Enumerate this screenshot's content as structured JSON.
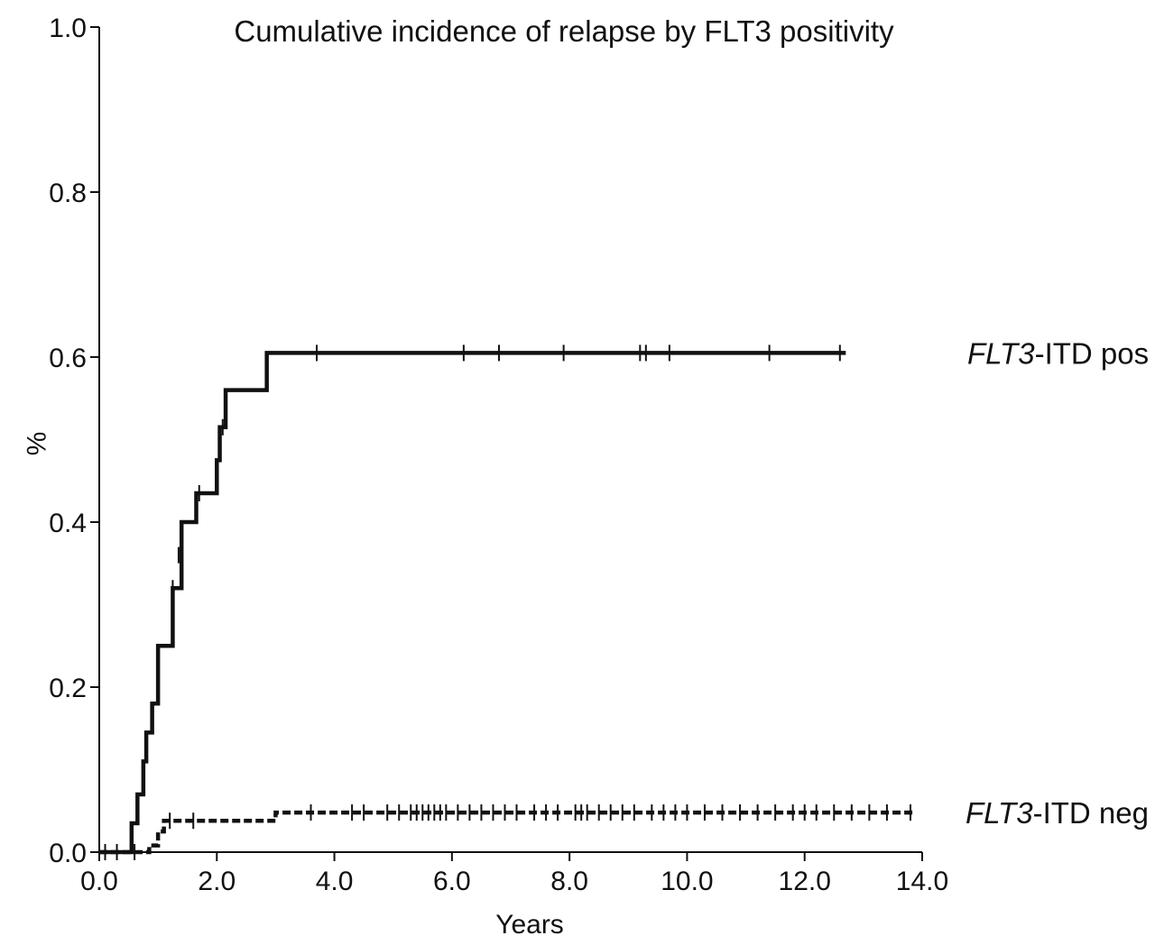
{
  "chart_data": {
    "type": "line",
    "title": "Cumulative incidence of relapse by FLT3 positivity",
    "xlabel": "Years",
    "ylabel": "%",
    "xlim": [
      0,
      14
    ],
    "ylim": [
      0,
      1
    ],
    "grid": false,
    "x_ticks": [
      0,
      2,
      4,
      6,
      8,
      10,
      12,
      14
    ],
    "x_tick_labels": [
      "0.0",
      "2.0",
      "4.0",
      "6.0",
      "8.0",
      "10.0",
      "12.0",
      "14.0"
    ],
    "y_ticks": [
      0,
      0.2,
      0.4,
      0.6,
      0.8,
      1
    ],
    "y_tick_labels": [
      "0.0",
      "0.2",
      "0.4",
      "0.6",
      "0.8",
      "1.0"
    ],
    "series": [
      {
        "name": "FLT3-ITD pos",
        "label_italic": "FLT3",
        "label_rest": "-ITD pos",
        "style": "solid",
        "color": "#111111",
        "steps": [
          [
            0,
            0
          ],
          [
            0.55,
            0.035
          ],
          [
            0.65,
            0.07
          ],
          [
            0.75,
            0.11
          ],
          [
            0.8,
            0.145
          ],
          [
            0.9,
            0.18
          ],
          [
            1.0,
            0.25
          ],
          [
            1.25,
            0.32
          ],
          [
            1.4,
            0.4
          ],
          [
            1.65,
            0.435
          ],
          [
            2.0,
            0.475
          ],
          [
            2.05,
            0.515
          ],
          [
            2.15,
            0.56
          ],
          [
            2.85,
            0.605
          ],
          [
            12.7,
            0.605
          ]
        ],
        "censored": [
          [
            1.25,
            0.32
          ],
          [
            1.35,
            0.36
          ],
          [
            1.7,
            0.435
          ],
          [
            2.1,
            0.515
          ],
          [
            3.7,
            0.605
          ],
          [
            6.2,
            0.605
          ],
          [
            6.8,
            0.605
          ],
          [
            7.9,
            0.605
          ],
          [
            9.2,
            0.605
          ],
          [
            9.3,
            0.605
          ],
          [
            9.7,
            0.605
          ],
          [
            11.4,
            0.605
          ],
          [
            12.6,
            0.605
          ]
        ]
      },
      {
        "name": "FLT3-ITD neg",
        "label_italic": "FLT3",
        "label_rest": "-ITD neg",
        "style": "dashed",
        "color": "#111111",
        "steps": [
          [
            0,
            0
          ],
          [
            0.85,
            0.008
          ],
          [
            1.0,
            0.025
          ],
          [
            1.1,
            0.038
          ],
          [
            3.0,
            0.048
          ],
          [
            13.85,
            0.048
          ]
        ],
        "censored": [
          [
            0.1,
            0.0
          ],
          [
            0.3,
            0.0
          ],
          [
            0.6,
            0.0
          ],
          [
            1.2,
            0.038
          ],
          [
            1.6,
            0.038
          ],
          [
            3.6,
            0.048
          ],
          [
            4.3,
            0.048
          ],
          [
            4.5,
            0.048
          ],
          [
            4.9,
            0.048
          ],
          [
            5.1,
            0.048
          ],
          [
            5.3,
            0.048
          ],
          [
            5.4,
            0.048
          ],
          [
            5.5,
            0.048
          ],
          [
            5.6,
            0.048
          ],
          [
            5.7,
            0.048
          ],
          [
            5.8,
            0.048
          ],
          [
            5.9,
            0.048
          ],
          [
            6.1,
            0.048
          ],
          [
            6.3,
            0.048
          ],
          [
            6.5,
            0.048
          ],
          [
            6.7,
            0.048
          ],
          [
            6.9,
            0.048
          ],
          [
            7.1,
            0.048
          ],
          [
            7.4,
            0.048
          ],
          [
            7.6,
            0.048
          ],
          [
            7.8,
            0.048
          ],
          [
            8.1,
            0.048
          ],
          [
            8.2,
            0.048
          ],
          [
            8.3,
            0.048
          ],
          [
            8.5,
            0.048
          ],
          [
            8.7,
            0.048
          ],
          [
            8.9,
            0.048
          ],
          [
            9.1,
            0.048
          ],
          [
            9.4,
            0.048
          ],
          [
            9.6,
            0.048
          ],
          [
            9.8,
            0.048
          ],
          [
            10.0,
            0.048
          ],
          [
            10.3,
            0.048
          ],
          [
            10.6,
            0.048
          ],
          [
            10.9,
            0.048
          ],
          [
            11.2,
            0.048
          ],
          [
            11.5,
            0.048
          ],
          [
            11.8,
            0.048
          ],
          [
            12.0,
            0.048
          ],
          [
            12.2,
            0.048
          ],
          [
            12.5,
            0.048
          ],
          [
            12.8,
            0.048
          ],
          [
            13.1,
            0.048
          ],
          [
            13.4,
            0.048
          ],
          [
            13.8,
            0.048
          ]
        ]
      }
    ]
  }
}
